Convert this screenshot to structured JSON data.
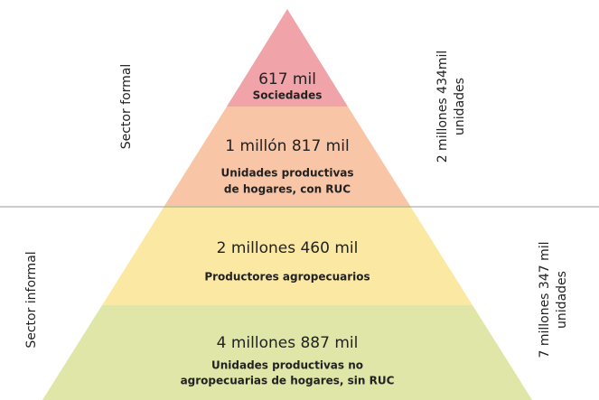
{
  "left_labels": [
    "Sector formal",
    "Sector informal"
  ],
  "right_labels": [
    [
      "2 millones 434mil",
      "unidades"
    ],
    [
      "7 millones 347 mil",
      "unidades"
    ]
  ],
  "levels": [
    {
      "amount": "617 mil",
      "description": [
        "Sociedades"
      ]
    },
    {
      "amount": "1 millón 817 mil",
      "description": [
        "Unidades productivas",
        "de hogares, con RUC"
      ]
    },
    {
      "amount": "2 millones 460 mil",
      "description": [
        "Productores agropecuarios"
      ]
    },
    {
      "amount": "4 millones 887 mil",
      "description": [
        "Unidades productivas no",
        "agropecuarias de hogares, sin RUC"
      ]
    }
  ]
}
